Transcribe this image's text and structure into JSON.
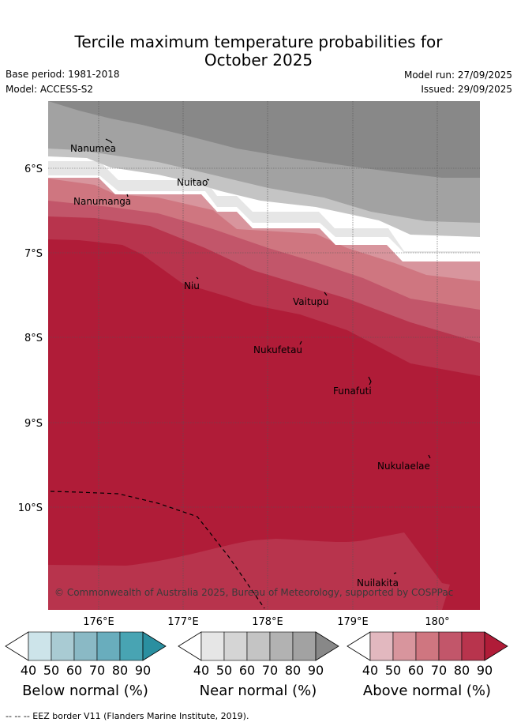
{
  "header": {
    "title_line1": "Tercile maximum temperature probabilities for",
    "title_line2": "October 2025",
    "base_period": "Base period: 1981-2018",
    "model": "Model: ACCESS-S2",
    "model_run": "Model run: 27/09/2025",
    "issued": "Issued: 29/09/2025"
  },
  "map": {
    "lon_ticks": [
      "176°E",
      "177°E",
      "178°E",
      "179°E",
      "180°"
    ],
    "lat_ticks": [
      "6°S",
      "7°S",
      "8°S",
      "9°S",
      "10°S"
    ],
    "places": [
      "Nanumea",
      "Nanumanga",
      "Nuitao",
      "Niu",
      "Vaitupu",
      "Nukufetau",
      "Funafuti",
      "Nukulaelae",
      "Nuilakita"
    ],
    "copyright": "© Commonwealth of Australia 2025, Bureau of Meteorology, supported by COSPPac"
  },
  "legend": {
    "ticks": [
      "40",
      "50",
      "60",
      "70",
      "80",
      "90"
    ],
    "below": {
      "label": "Below normal (%)",
      "colors": [
        "#ffffff",
        "#cde4ea",
        "#a9cbd3",
        "#8ab9c5",
        "#69adbd",
        "#48a4b3",
        "#2a8fa0"
      ]
    },
    "near": {
      "label": "Near normal (%)",
      "colors": [
        "#ffffff",
        "#e6e6e6",
        "#d5d5d5",
        "#c4c4c4",
        "#b2b2b2",
        "#a2a2a2",
        "#888888"
      ]
    },
    "above": {
      "label": "Above normal (%)",
      "colors": [
        "#ffffff",
        "#e2b8bf",
        "#d8959d",
        "#cf7680",
        "#c2566a",
        "#b8344d",
        "#b01c38"
      ]
    }
  },
  "footnote": "--  --  -- EEZ border V11 (Flanders Marine Institute, 2019)."
}
